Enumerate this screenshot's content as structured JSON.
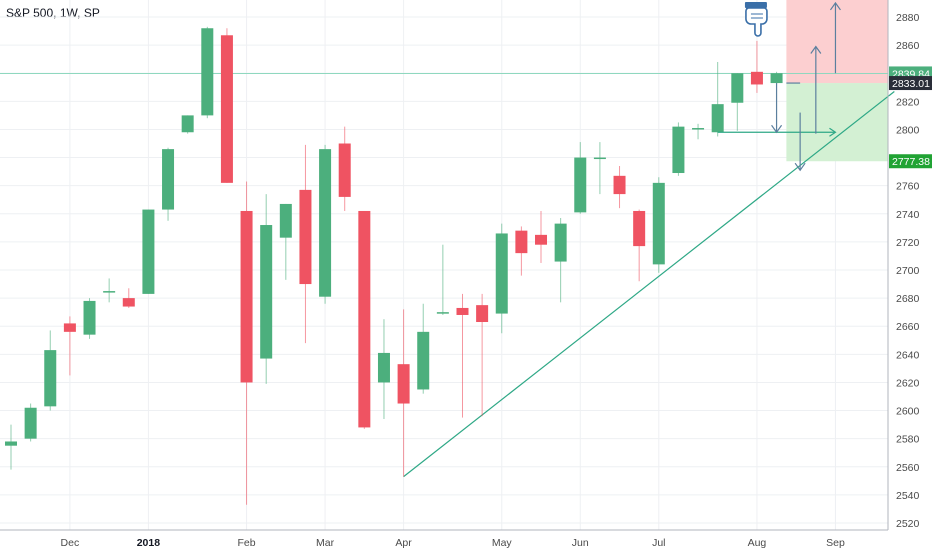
{
  "header": {
    "title": "S&P 500, 1W, SP"
  },
  "colors": {
    "up": "#4caf7d",
    "down": "#ef5362",
    "trendline": "#2ea886",
    "hline": "#8fd8bf",
    "target_zone": "#d3f0d3",
    "stop_zone": "#fccfd0",
    "projection_arrow": "#5b7f9e",
    "tag_current": "#4caf7d",
    "tag_level": "#2a2e39",
    "tag_target": "#21a334",
    "grid": "#eef0f3"
  },
  "icons": {
    "pointer": "pointing-down-hand-icon"
  },
  "chart_data": {
    "type": "candlestick",
    "title": "S&P 500, 1W, SP",
    "ylim": [
      2515,
      2895
    ],
    "y_ticks": [
      2520,
      2540,
      2560,
      2580,
      2600,
      2620,
      2640,
      2660,
      2680,
      2700,
      2720,
      2740,
      2760,
      2780,
      2800,
      2820,
      2840,
      2860,
      2880
    ],
    "x_ticks": [
      {
        "label": "Dec",
        "index": 3,
        "bold": false
      },
      {
        "label": "2018",
        "index": 7,
        "bold": true
      },
      {
        "label": "Feb",
        "index": 12,
        "bold": false
      },
      {
        "label": "Mar",
        "index": 16,
        "bold": false
      },
      {
        "label": "Apr",
        "index": 20,
        "bold": false
      },
      {
        "label": "May",
        "index": 25,
        "bold": false
      },
      {
        "label": "Jun",
        "index": 29,
        "bold": false
      },
      {
        "label": "Jul",
        "index": 33,
        "bold": false
      },
      {
        "label": "Aug",
        "index": 38,
        "bold": false
      },
      {
        "label": "Sep",
        "index": 42,
        "bold": false
      }
    ],
    "candles": [
      {
        "o": 2575,
        "h": 2590,
        "l": 2558,
        "c": 2578
      },
      {
        "o": 2580,
        "h": 2605,
        "l": 2578,
        "c": 2602
      },
      {
        "o": 2603,
        "h": 2657,
        "l": 2600,
        "c": 2643
      },
      {
        "o": 2662,
        "h": 2667,
        "l": 2625,
        "c": 2656
      },
      {
        "o": 2654,
        "h": 2680,
        "l": 2651,
        "c": 2678
      },
      {
        "o": 2684,
        "h": 2694,
        "l": 2677,
        "c": 2685
      },
      {
        "o": 2680,
        "h": 2687,
        "l": 2673,
        "c": 2674
      },
      {
        "o": 2683,
        "h": 2743,
        "l": 2683,
        "c": 2743
      },
      {
        "o": 2743,
        "h": 2787,
        "l": 2735,
        "c": 2786
      },
      {
        "o": 2798,
        "h": 2810,
        "l": 2797,
        "c": 2810
      },
      {
        "o": 2810,
        "h": 2873,
        "l": 2808,
        "c": 2872
      },
      {
        "o": 2867,
        "h": 2872,
        "l": 2762,
        "c": 2762
      },
      {
        "o": 2742,
        "h": 2763,
        "l": 2533,
        "c": 2620
      },
      {
        "o": 2637,
        "h": 2754,
        "l": 2619,
        "c": 2732
      },
      {
        "o": 2723,
        "h": 2747,
        "l": 2693,
        "c": 2747
      },
      {
        "o": 2757,
        "h": 2789,
        "l": 2648,
        "c": 2690
      },
      {
        "o": 2681,
        "h": 2789,
        "l": 2676,
        "c": 2786
      },
      {
        "o": 2790,
        "h": 2802,
        "l": 2742,
        "c": 2752
      },
      {
        "o": 2742,
        "h": 2742,
        "l": 2587,
        "c": 2588
      },
      {
        "o": 2620,
        "h": 2665,
        "l": 2594,
        "c": 2641
      },
      {
        "o": 2633,
        "h": 2672,
        "l": 2553,
        "c": 2605
      },
      {
        "o": 2615,
        "h": 2676,
        "l": 2612,
        "c": 2656
      },
      {
        "o": 2670,
        "h": 2718,
        "l": 2668,
        "c": 2670
      },
      {
        "o": 2673,
        "h": 2683,
        "l": 2595,
        "c": 2668
      },
      {
        "o": 2675,
        "h": 2683,
        "l": 2596,
        "c": 2663
      },
      {
        "o": 2669,
        "h": 2733,
        "l": 2655,
        "c": 2726
      },
      {
        "o": 2728,
        "h": 2731,
        "l": 2696,
        "c": 2712
      },
      {
        "o": 2725,
        "h": 2742,
        "l": 2705,
        "c": 2718
      },
      {
        "o": 2706,
        "h": 2737,
        "l": 2677,
        "c": 2733
      },
      {
        "o": 2741,
        "h": 2791,
        "l": 2740,
        "c": 2780
      },
      {
        "o": 2779,
        "h": 2791,
        "l": 2754,
        "c": 2780
      },
      {
        "o": 2767,
        "h": 2774,
        "l": 2744,
        "c": 2754
      },
      {
        "o": 2742,
        "h": 2743,
        "l": 2692,
        "c": 2717
      },
      {
        "o": 2704,
        "h": 2766,
        "l": 2698,
        "c": 2762
      },
      {
        "o": 2769,
        "h": 2805,
        "l": 2767,
        "c": 2802
      },
      {
        "o": 2801,
        "h": 2804,
        "l": 2793,
        "c": 2801
      },
      {
        "o": 2798,
        "h": 2848,
        "l": 2795,
        "c": 2818
      },
      {
        "o": 2819,
        "h": 2840,
        "l": 2799,
        "c": 2840
      },
      {
        "o": 2841,
        "h": 2863,
        "l": 2826,
        "c": 2832
      },
      {
        "o": 2833,
        "h": 2841,
        "l": 2832,
        "c": 2840
      }
    ],
    "trendline": {
      "from": {
        "index": 20,
        "value": 2553
      },
      "to": {
        "index": 45,
        "value": 2827
      }
    },
    "horizontal_line": 2839.84,
    "price_tags": [
      {
        "label": "2839.84",
        "value": 2839.84,
        "role": "current"
      },
      {
        "label": "2833.01",
        "value": 2833.01,
        "role": "level"
      },
      {
        "label": "2777.38",
        "value": 2777.38,
        "role": "target"
      }
    ],
    "zones": [
      {
        "role": "stop",
        "from_value": 2833.01,
        "to_value": 2895,
        "from_index": 39.5
      },
      {
        "role": "target",
        "from_value": 2777.38,
        "to_value": 2833.01,
        "from_index": 39.5
      }
    ],
    "projection": {
      "base": {
        "index": 36,
        "value": 2797
      },
      "corner": {
        "index": 40,
        "value": 2833
      },
      "arrows_up": [
        {
          "index": 41,
          "from": 2797,
          "to": 2859
        },
        {
          "index": 42,
          "from": 2840,
          "to": 2890
        }
      ],
      "arrows_down": [
        {
          "index": 39,
          "from": 2833,
          "to": 2798
        },
        {
          "index": 40.2,
          "from": 2812,
          "to": 2771
        }
      ],
      "channel_line": {
        "from": {
          "index": 36,
          "value": 2798
        },
        "to": {
          "index": 42,
          "value": 2798
        }
      }
    }
  }
}
